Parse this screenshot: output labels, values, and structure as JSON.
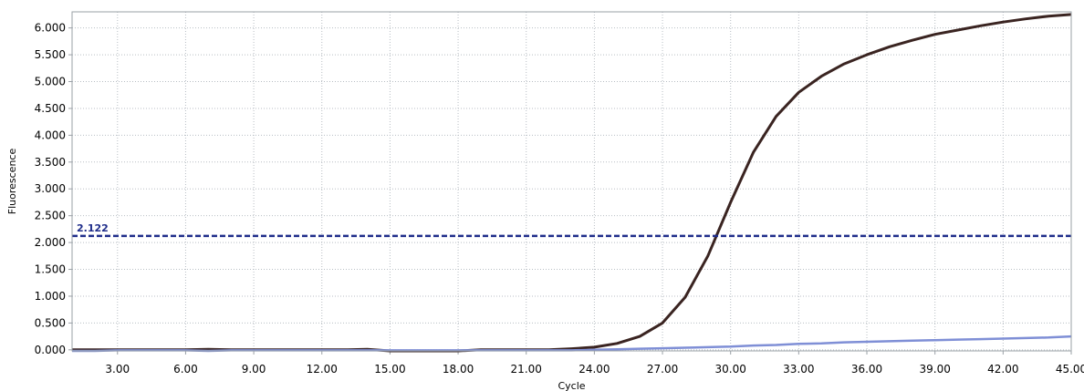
{
  "chart_data": {
    "type": "line",
    "xlabel": "Cycle",
    "ylabel": "Fluorescence",
    "xlim": [
      1,
      45
    ],
    "ylim": [
      -0.02,
      6.3
    ],
    "x_ticks": [
      3,
      6,
      9,
      12,
      15,
      18,
      21,
      24,
      27,
      30,
      33,
      36,
      39,
      42,
      45
    ],
    "x_tick_labels": [
      "3.00",
      "6.00",
      "9.00",
      "12.00",
      "15.00",
      "18.00",
      "21.00",
      "24.00",
      "27.00",
      "30.00",
      "33.00",
      "36.00",
      "39.00",
      "42.00",
      "45.00"
    ],
    "y_ticks": [
      0,
      0.5,
      1,
      1.5,
      2,
      2.5,
      3,
      3.5,
      4,
      4.5,
      5,
      5.5,
      6
    ],
    "y_tick_labels": [
      "0.000",
      "0.500",
      "1.000",
      "1.500",
      "2.000",
      "2.500",
      "3.000",
      "3.500",
      "4.000",
      "4.500",
      "5.000",
      "5.500",
      "6.000"
    ],
    "grid": true,
    "threshold": {
      "value": 2.122,
      "label": "2.122",
      "color": "#1f2d8a"
    },
    "x": [
      1,
      2,
      3,
      4,
      5,
      6,
      7,
      8,
      9,
      10,
      11,
      12,
      13,
      14,
      15,
      16,
      17,
      18,
      19,
      20,
      21,
      22,
      23,
      24,
      25,
      26,
      27,
      28,
      29,
      30,
      31,
      32,
      33,
      34,
      35,
      36,
      37,
      38,
      39,
      40,
      41,
      42,
      43,
      44,
      45
    ],
    "series": [
      {
        "color": "#3a2421",
        "values": [
          0.0,
          0.0,
          0.0,
          0.0,
          0.0,
          0.0,
          0.01,
          0.0,
          0.0,
          0.0,
          0.0,
          0.0,
          0.0,
          0.01,
          -0.02,
          -0.02,
          -0.02,
          -0.02,
          0.0,
          0.0,
          0.0,
          0.0,
          0.02,
          0.05,
          0.12,
          0.25,
          0.5,
          0.98,
          1.75,
          2.75,
          3.68,
          4.35,
          4.8,
          5.1,
          5.33,
          5.5,
          5.65,
          5.77,
          5.88,
          5.96,
          6.04,
          6.11,
          6.17,
          6.22,
          6.25
        ]
      },
      {
        "color": "#7f8fd6",
        "values": [
          -0.02,
          -0.02,
          -0.01,
          -0.01,
          -0.01,
          -0.01,
          -0.02,
          -0.01,
          -0.01,
          -0.01,
          -0.01,
          -0.01,
          -0.01,
          -0.01,
          -0.01,
          -0.01,
          -0.01,
          -0.01,
          -0.01,
          -0.01,
          -0.01,
          -0.01,
          -0.01,
          0.0,
          0.01,
          0.02,
          0.03,
          0.04,
          0.05,
          0.06,
          0.08,
          0.09,
          0.11,
          0.12,
          0.14,
          0.15,
          0.16,
          0.17,
          0.18,
          0.19,
          0.2,
          0.21,
          0.22,
          0.23,
          0.25
        ]
      }
    ]
  }
}
